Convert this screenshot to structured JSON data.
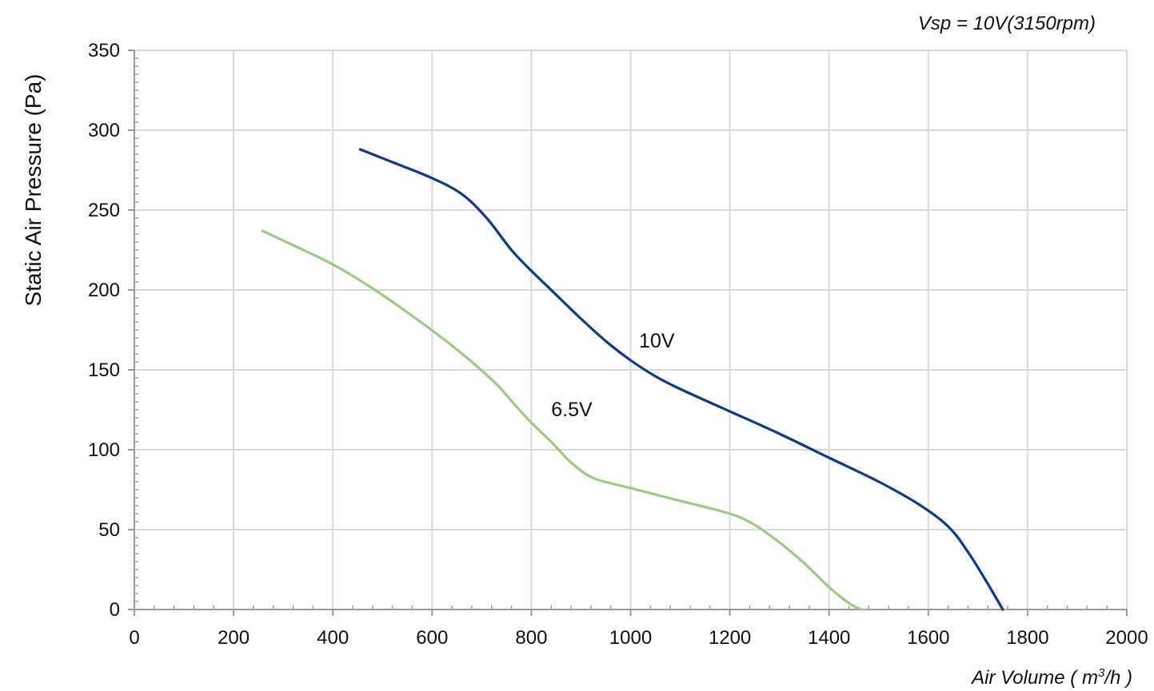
{
  "chart_data": {
    "type": "line",
    "annotation": "Vsp = 10V(3150rpm)",
    "xlabel_text": "Air Volume ( m",
    "xlabel_sup": "3",
    "xlabel_tail": "/h )",
    "ylabel": "Static Air Pressure  (Pa)",
    "xlim": [
      0,
      2000
    ],
    "ylim": [
      0,
      350
    ],
    "x_ticks": [
      "0",
      "200",
      "400",
      "600",
      "800",
      "1000",
      "1200",
      "1400",
      "1600",
      "1800",
      "2000"
    ],
    "y_ticks": [
      "0",
      "50",
      "100",
      "150",
      "200",
      "250",
      "300",
      "350"
    ],
    "grid": true,
    "series": [
      {
        "name": "10V",
        "color": "#0d3a8a",
        "x": [
          455,
          520,
          600,
          660,
          710,
          760,
          800,
          850,
          900,
          950,
          1000,
          1050,
          1100,
          1200,
          1300,
          1400,
          1500,
          1580,
          1640,
          1680,
          1720,
          1750
        ],
        "y": [
          288,
          280,
          270,
          260,
          245,
          225,
          212,
          197,
          182,
          168,
          156,
          146,
          138,
          124,
          110,
          95,
          80,
          66,
          52,
          36,
          16,
          0
        ]
      },
      {
        "name": "6.5V",
        "color": "#9cc983",
        "x": [
          258,
          320,
          400,
          480,
          550,
          620,
          680,
          730,
          770,
          800,
          840,
          880,
          920,
          960,
          1000,
          1100,
          1200,
          1250,
          1300,
          1350,
          1400,
          1440,
          1465
        ],
        "y": [
          237,
          228,
          216,
          201,
          186,
          170,
          155,
          141,
          127,
          117,
          105,
          92,
          83,
          79,
          76,
          68,
          60,
          53,
          42,
          29,
          14,
          4,
          0
        ]
      }
    ],
    "series_label_positions": [
      {
        "name": "10V",
        "x": 1017,
        "y": 164
      },
      {
        "name": "6.5V",
        "x": 840,
        "y": 121
      }
    ]
  }
}
